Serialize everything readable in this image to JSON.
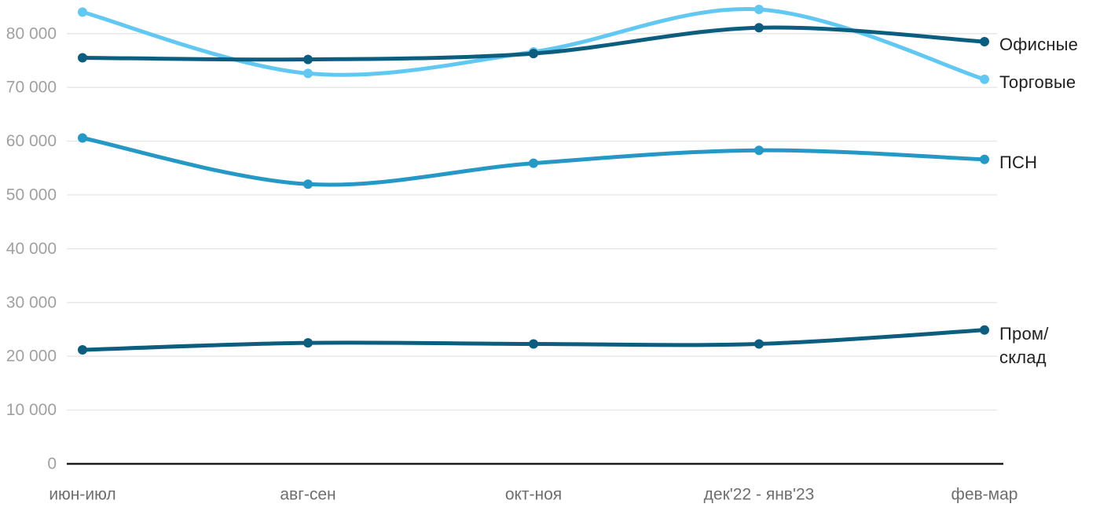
{
  "page": {
    "background": "#ffffff"
  },
  "colors": {
    "grid": "#e7e7e7",
    "axis": "#1c1c1c",
    "ytick_text": "#a0a0a0",
    "xtick_text": "#6e6e6e",
    "legend_text": "#212121",
    "series_dark_teal": "#0d5d7f",
    "series_light_blue": "#62c8f2",
    "series_medium_blue": "#2598c5"
  },
  "chart_data": {
    "type": "line",
    "title": "",
    "xlabel": "",
    "ylabel": "",
    "grid": "horizontal",
    "legend_position": "right",
    "categories": [
      "июн-июл",
      "авг-сен",
      "окт-ноя",
      "дек'22 - янв'23",
      "фев-мар"
    ],
    "ylim": [
      0,
      86250
    ],
    "yticks": {
      "values": [
        0,
        10000,
        20000,
        30000,
        40000,
        50000,
        60000,
        70000,
        80000
      ],
      "labels": [
        "0",
        "10 000",
        "20 000",
        "30 000",
        "40 000",
        "50 000",
        "60 000",
        "70 000",
        "80 000"
      ]
    },
    "series": [
      {
        "id": "offices",
        "name": "Офисные",
        "legend_label": "Офисные",
        "color": "#0d5d7f",
        "z": 4,
        "values": [
          75500,
          75200,
          76300,
          81100,
          78500
        ]
      },
      {
        "id": "retail",
        "name": "Торговые",
        "legend_label": "Торговые",
        "color": "#62c8f2",
        "z": 1,
        "values": [
          84000,
          72600,
          76600,
          84500,
          71500
        ]
      },
      {
        "id": "psn",
        "name": "ПСН",
        "legend_label": "ПСН",
        "color": "#2598c5",
        "z": 2,
        "values": [
          60600,
          52000,
          55900,
          58300,
          56600
        ]
      },
      {
        "id": "industrial-warehouse",
        "name": "Пром/склад",
        "legend_label": "Пром/\nсклад",
        "color": "#0d5d7f",
        "z": 3,
        "values": [
          21200,
          22500,
          22300,
          22300,
          24900
        ]
      }
    ]
  }
}
